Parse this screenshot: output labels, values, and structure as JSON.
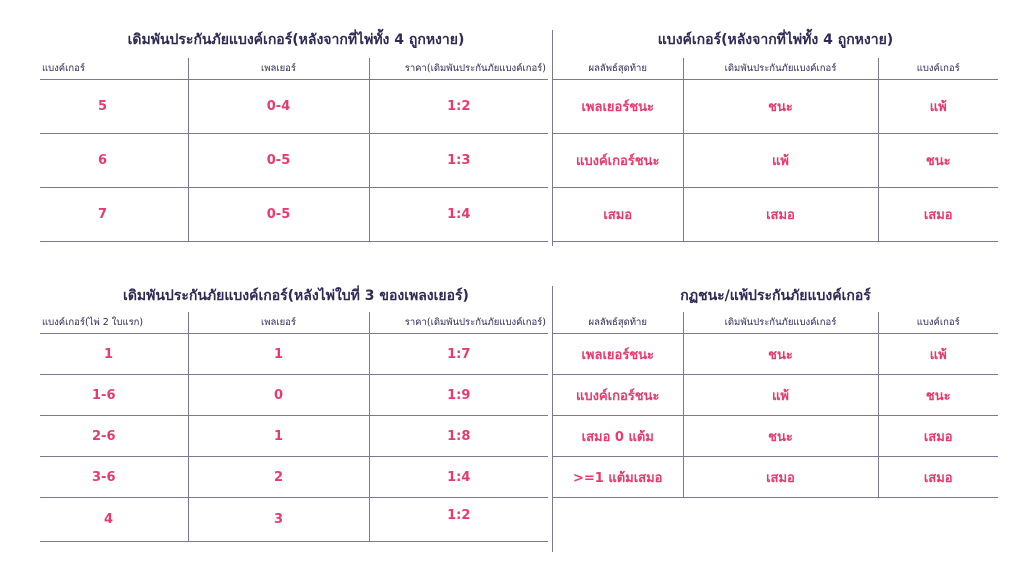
{
  "top_left": {
    "title": "เดิมพันประกันภัยแบงค์เกอร์(หลังจากที่ไพ่ทั้ง 4 ถูกหงาย)",
    "headers": [
      "แบงค์เกอร์",
      "เพลเยอร์",
      "ราคา(เดิมพันประกันภัยแบงค์เกอร์)"
    ],
    "rows": [
      [
        "5",
        "0-4",
        "1:2"
      ],
      [
        "6",
        "0-5",
        "1:3"
      ],
      [
        "7",
        "0-5",
        "1:4"
      ]
    ]
  },
  "top_right": {
    "title": "แบงค์เกอร์(หลังจากที่ไพ่ทั้ง 4 ถูกหงาย)",
    "headers": [
      "ผลลัพธ์สุดท้าย",
      "เดิมพันประกันภัยแบงค์เกอร์",
      "แบงค์เกอร์"
    ],
    "rows": [
      [
        "เพลเยอร์ชนะ",
        "ชนะ",
        "แพ้"
      ],
      [
        "แบงค์เกอร์ชนะ",
        "แพ้",
        "ชนะ"
      ],
      [
        "เสมอ",
        "เสมอ",
        "เสมอ"
      ]
    ]
  },
  "bottom_left": {
    "title": "เดิมพันประกันภัยแบงค์เกอร์(หลังไพ่ใบที่ 3 ของเพลงเยอร์)",
    "headers": [
      "แบงค์เกอร์(ไพ่ 2 ใบแรก)",
      "เพลเยอร์",
      "ราคา(เดิมพันประกันภัยแบงค์เกอร์)"
    ],
    "rows": [
      [
        "1",
        "1",
        "1:7"
      ],
      [
        "1-6",
        "0",
        "1:9"
      ],
      [
        "2-6",
        "1",
        "1:8"
      ],
      [
        "3-6",
        "2",
        "1:4"
      ],
      [
        "4",
        "3",
        "1:2"
      ]
    ]
  },
  "bottom_right": {
    "title": "กฏชนะ/แพ้ประกันภัยแบงค์เกอร์",
    "headers": [
      "ผลลัพธ์สุดท้าย",
      "เดิมพันประกันภัยแบงค์เกอร์",
      "แบงค์เกอร์"
    ],
    "rows": [
      [
        "เพลเยอร์ชนะ",
        "ชนะ",
        "แพ้"
      ],
      [
        "แบงค์เกอร์ชนะ",
        "แพ้",
        "ชนะ"
      ],
      [
        "เสมอ 0 แต้ม",
        "ชนะ",
        "เสมอ"
      ],
      [
        ">=1 แต้มเสมอ",
        "เสมอ",
        "เสมอ"
      ]
    ]
  },
  "colors": {
    "heading": "#2d2a55",
    "value": "#e83a6d",
    "rule": "#7a7896"
  }
}
